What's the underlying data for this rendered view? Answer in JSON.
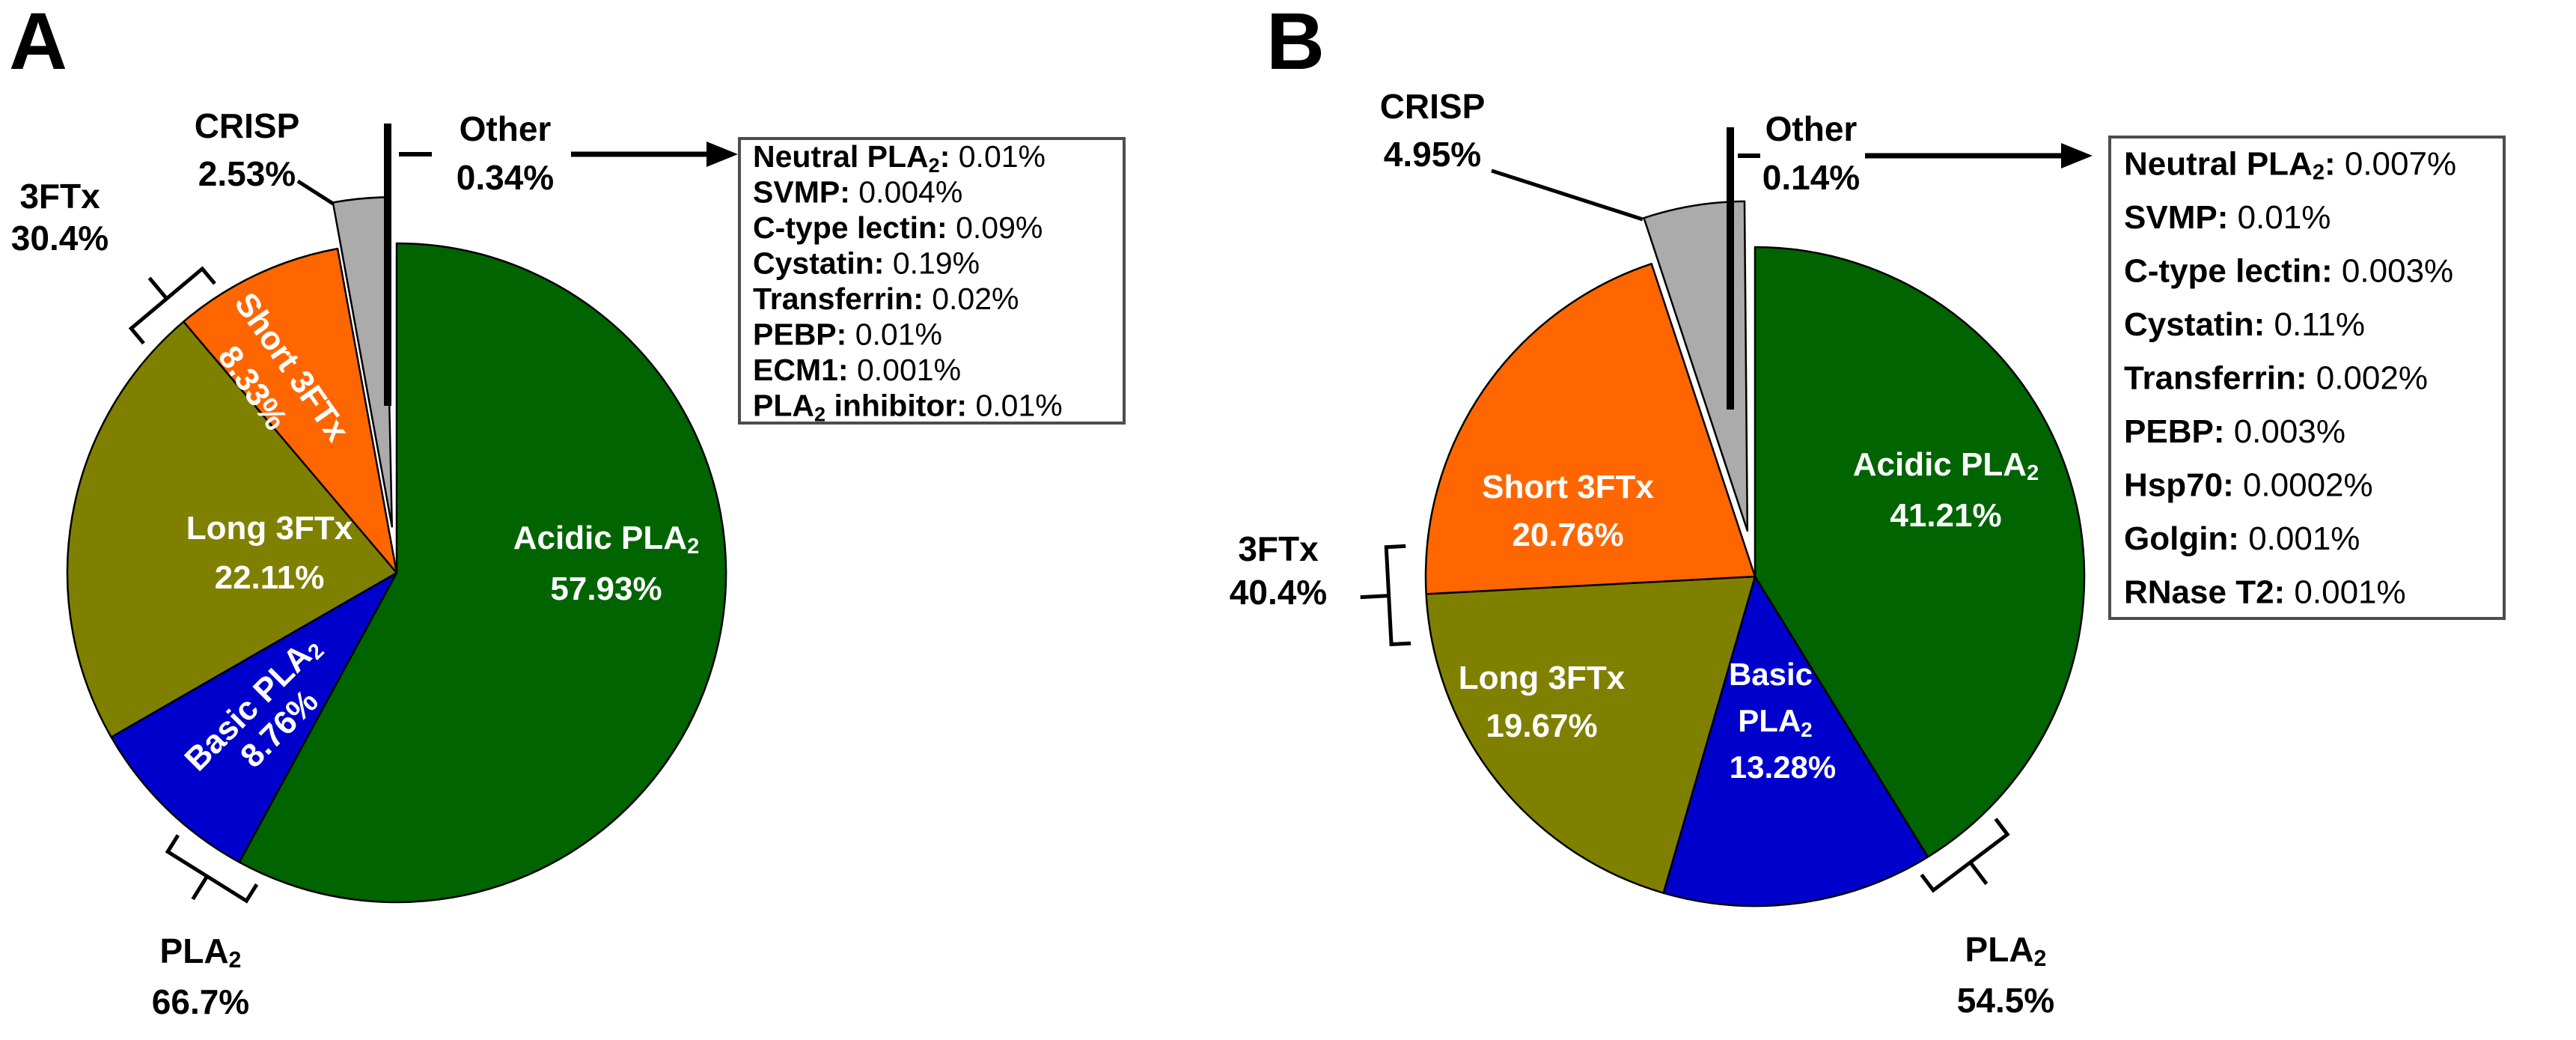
{
  "chart_data": [
    {
      "type": "pie",
      "panel_label": "A",
      "legend_position": "right",
      "units": "%",
      "slices": [
        {
          "label": "Acidic PLA₂",
          "value": 57.93,
          "pct_label": "57.93%",
          "color": "#006400",
          "text_color": "#ffffff"
        },
        {
          "label": "Basic PLA₂",
          "value": 8.76,
          "pct_label": "8.76%",
          "color": "#0000CC",
          "text_color": "#ffffff"
        },
        {
          "label": "Long 3FTx",
          "value": 22.11,
          "pct_label": "22.11%",
          "color": "#808000",
          "text_color": "#ffffff"
        },
        {
          "label": "Short 3FTx",
          "value": 8.33,
          "pct_label": "8.33%",
          "color": "#FF6600",
          "text_color": "#ffffff"
        },
        {
          "label": "CRISP",
          "value": 2.53,
          "pct_label": "2.53%",
          "color": "#ABABAB",
          "exploded": true
        },
        {
          "label": "Other",
          "value": 0.34,
          "pct_label": "0.34%",
          "color": "#000000",
          "rendered_as": "line"
        }
      ],
      "group_brackets": [
        {
          "label": "3FTx",
          "pct_label": "30.4%"
        },
        {
          "label": "PLA₂",
          "pct_label": "66.7%"
        }
      ],
      "other_breakdown": [
        {
          "name": "Neutral PLA₂",
          "value": "0.01%"
        },
        {
          "name": "SVMP",
          "value": "0.004%"
        },
        {
          "name": "C-type lectin",
          "value": "0.09%"
        },
        {
          "name": "Cystatin",
          "value": "0.19%"
        },
        {
          "name": "Transferrin",
          "value": "0.02%"
        },
        {
          "name": "PEBP",
          "value": "0.01%"
        },
        {
          "name": "ECM1",
          "value": "0.001%"
        },
        {
          "name": "PLA₂ inhibitor",
          "value": "0.01%"
        }
      ]
    },
    {
      "type": "pie",
      "panel_label": "B",
      "legend_position": "right",
      "units": "%",
      "slices": [
        {
          "label": "Acidic PLA₂",
          "value": 41.21,
          "pct_label": "41.21%",
          "color": "#006400",
          "text_color": "#ffffff"
        },
        {
          "label": "Basic PLA₂",
          "value": 13.28,
          "pct_label": "13.28%",
          "color": "#0000CC",
          "text_color": "#ffffff"
        },
        {
          "label": "Long 3FTx",
          "value": 19.67,
          "pct_label": "19.67%",
          "color": "#808000",
          "text_color": "#ffffff"
        },
        {
          "label": "Short 3FTx",
          "value": 20.76,
          "pct_label": "20.76%",
          "color": "#FF6600",
          "text_color": "#ffffff"
        },
        {
          "label": "CRISP",
          "value": 4.95,
          "pct_label": "4.95%",
          "color": "#ABABAB",
          "exploded": true
        },
        {
          "label": "Other",
          "value": 0.14,
          "pct_label": "0.14%",
          "color": "#000000",
          "rendered_as": "line"
        }
      ],
      "group_brackets": [
        {
          "label": "3FTx",
          "pct_label": "40.4%"
        },
        {
          "label": "PLA₂",
          "pct_label": "54.5%"
        }
      ],
      "other_breakdown": [
        {
          "name": "Neutral PLA₂",
          "value": "0.007%"
        },
        {
          "name": "SVMP",
          "value": "0.01%"
        },
        {
          "name": "C-type lectin",
          "value": "0.003%"
        },
        {
          "name": "Cystatin",
          "value": "0.11%"
        },
        {
          "name": "Transferrin",
          "value": "0.002%"
        },
        {
          "name": "PEBP",
          "value": "0.003%"
        },
        {
          "name": "Hsp70",
          "value": "0.0002%"
        },
        {
          "name": "Golgin",
          "value": "0.001%"
        },
        {
          "name": "RNase T2",
          "value": "0.001%"
        }
      ]
    }
  ]
}
